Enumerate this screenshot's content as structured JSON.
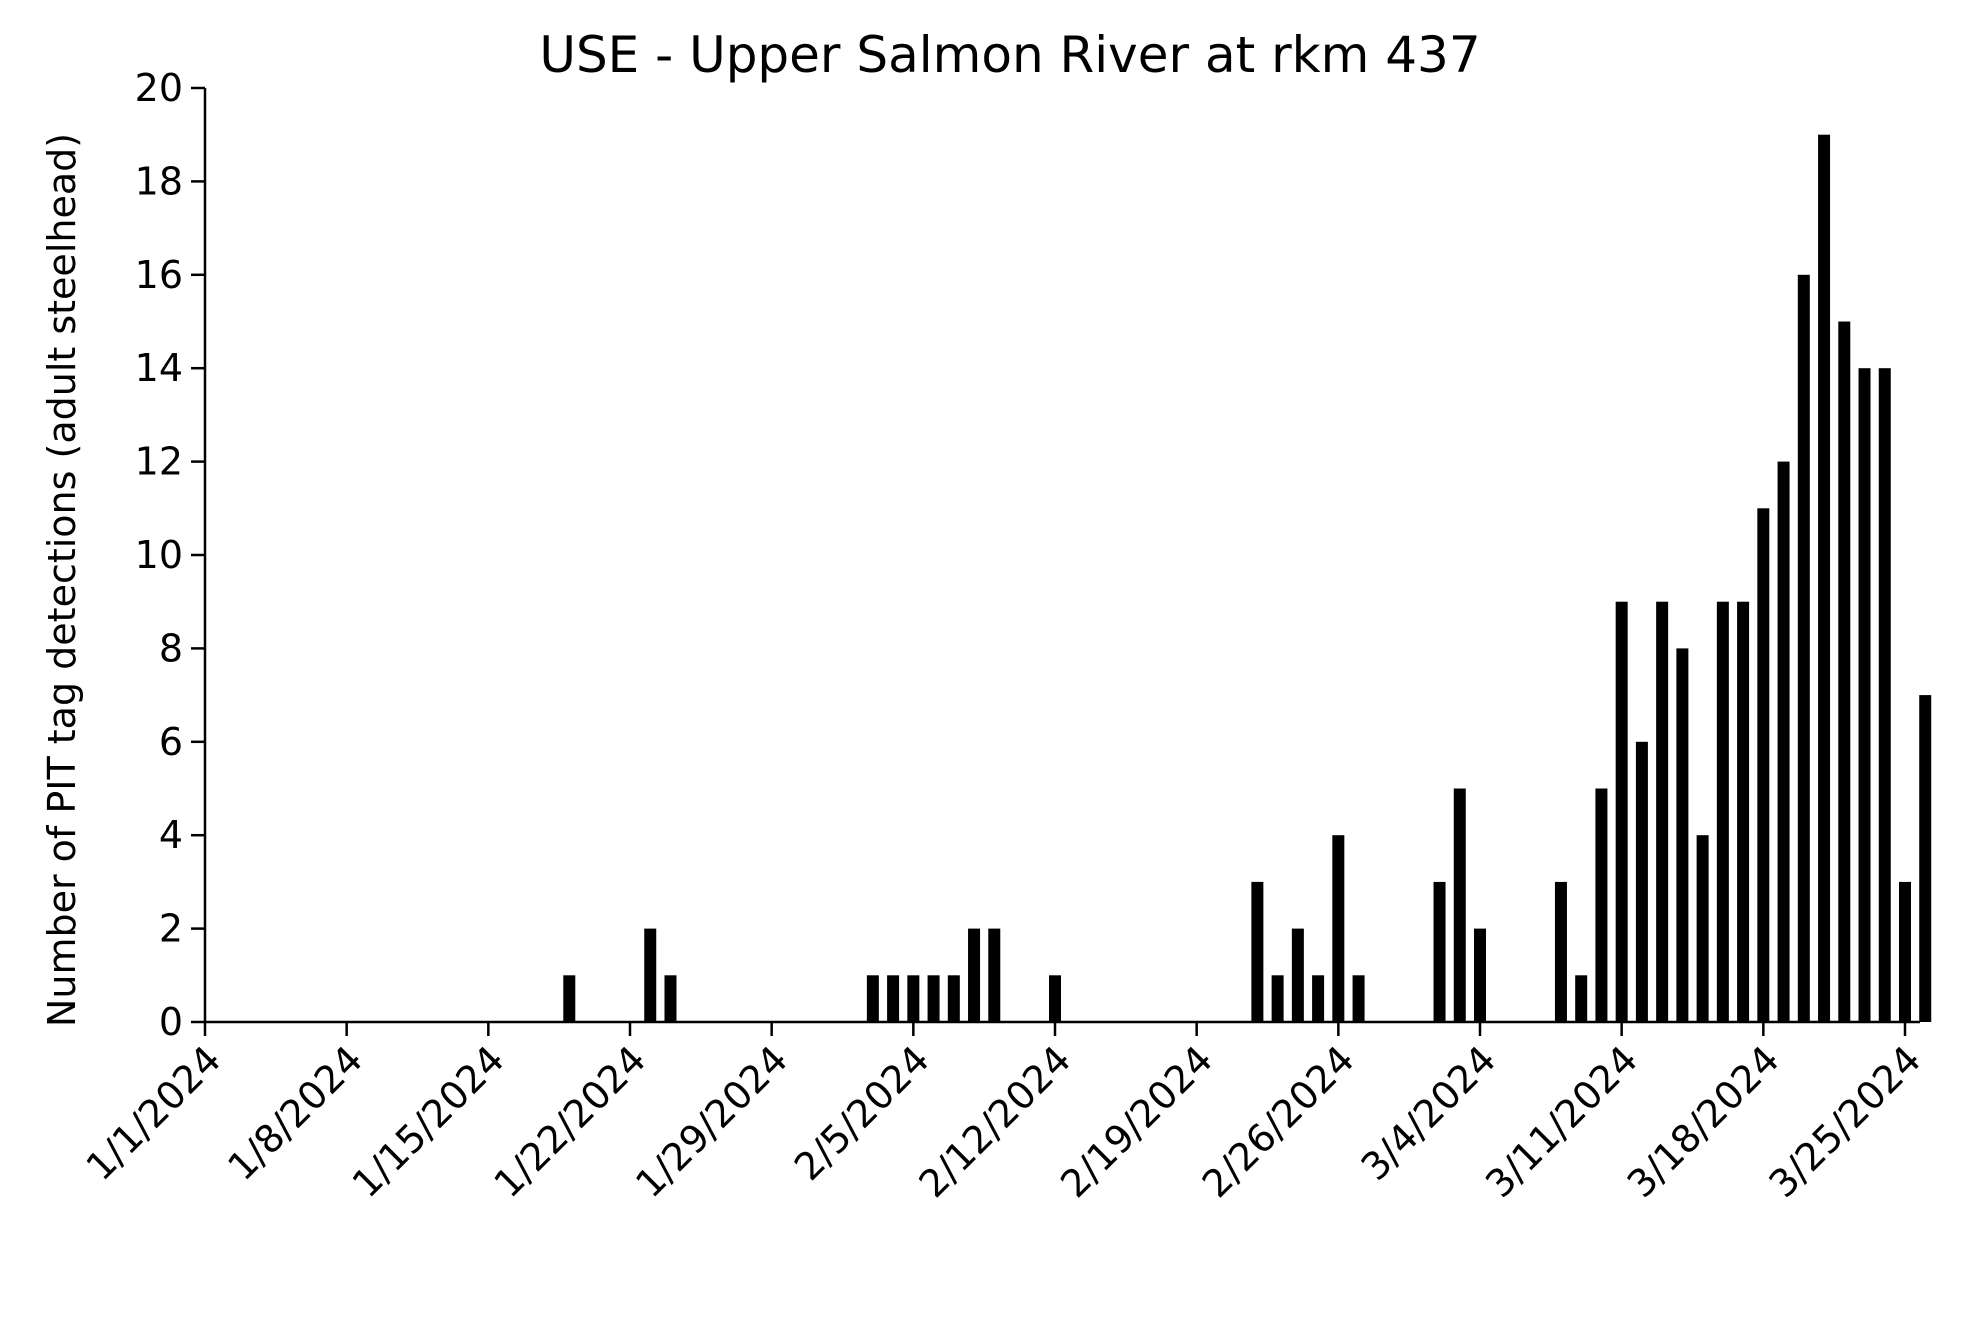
{
  "chart_data": {
    "type": "bar",
    "title": "USE - Upper Salmon River at rkm 437",
    "xlabel": "",
    "ylabel": "Number of PIT tag detections (adult steelhead)",
    "ylim": [
      0,
      20
    ],
    "yticks": [
      0,
      2,
      4,
      6,
      8,
      10,
      12,
      14,
      16,
      18,
      20
    ],
    "xlim": [
      "1/1/2024",
      "3/25/2024"
    ],
    "xtick_labels": [
      "1/1/2024",
      "1/8/2024",
      "1/15/2024",
      "1/22/2024",
      "1/29/2024",
      "2/5/2024",
      "2/12/2024",
      "2/19/2024",
      "2/26/2024",
      "3/4/2024",
      "3/11/2024",
      "3/18/2024",
      "3/25/2024"
    ],
    "grid": false,
    "bar_color": "#000000",
    "points": [
      {
        "date": "1/19/2024",
        "value": 1
      },
      {
        "date": "1/23/2024",
        "value": 2
      },
      {
        "date": "1/24/2024",
        "value": 1
      },
      {
        "date": "2/3/2024",
        "value": 1
      },
      {
        "date": "2/4/2024",
        "value": 1
      },
      {
        "date": "2/5/2024",
        "value": 1
      },
      {
        "date": "2/6/2024",
        "value": 1
      },
      {
        "date": "2/7/2024",
        "value": 1
      },
      {
        "date": "2/8/2024",
        "value": 2
      },
      {
        "date": "2/9/2024",
        "value": 2
      },
      {
        "date": "2/12/2024",
        "value": 1
      },
      {
        "date": "2/22/2024",
        "value": 3
      },
      {
        "date": "2/23/2024",
        "value": 1
      },
      {
        "date": "2/24/2024",
        "value": 2
      },
      {
        "date": "2/25/2024",
        "value": 1
      },
      {
        "date": "2/26/2024",
        "value": 4
      },
      {
        "date": "2/27/2024",
        "value": 1
      },
      {
        "date": "3/2/2024",
        "value": 3
      },
      {
        "date": "3/3/2024",
        "value": 5
      },
      {
        "date": "3/4/2024",
        "value": 2
      },
      {
        "date": "3/8/2024",
        "value": 3
      },
      {
        "date": "3/9/2024",
        "value": 1
      },
      {
        "date": "3/10/2024",
        "value": 5
      },
      {
        "date": "3/11/2024",
        "value": 9
      },
      {
        "date": "3/12/2024",
        "value": 6
      },
      {
        "date": "3/13/2024",
        "value": 9
      },
      {
        "date": "3/14/2024",
        "value": 8
      },
      {
        "date": "3/15/2024",
        "value": 4
      },
      {
        "date": "3/16/2024",
        "value": 9
      },
      {
        "date": "3/17/2024",
        "value": 9
      },
      {
        "date": "3/18/2024",
        "value": 11
      },
      {
        "date": "3/19/2024",
        "value": 12
      },
      {
        "date": "3/20/2024",
        "value": 16
      },
      {
        "date": "3/21/2024",
        "value": 19
      },
      {
        "date": "3/22/2024",
        "value": 15
      },
      {
        "date": "3/23/2024",
        "value": 14
      },
      {
        "date": "3/24/2024",
        "value": 14
      },
      {
        "date": "3/25/2024",
        "value": 3
      },
      {
        "date": "3/26/2024",
        "value": 7
      }
    ]
  }
}
